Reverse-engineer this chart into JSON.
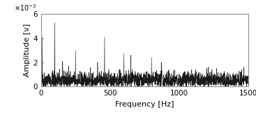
{
  "title": "",
  "xlabel": "Frequency [Hz]",
  "ylabel": "Amplitude [v]",
  "xlim": [
    0,
    1500
  ],
  "ylim": [
    0,
    0.006
  ],
  "yticks": [
    0,
    0.002,
    0.004,
    0.006
  ],
  "ytick_labels": [
    "0",
    "2",
    "4",
    "6"
  ],
  "xticks": [
    0,
    500,
    1000,
    1500
  ],
  "line_color": "#1a1a1a",
  "bg_color": "#ffffff",
  "peaks": [
    {
      "freq": 10,
      "amp": 0.0041
    },
    {
      "freq": 100,
      "amp": 0.0053
    },
    {
      "freq": 155,
      "amp": 0.0021
    },
    {
      "freq": 200,
      "amp": 0.0017
    },
    {
      "freq": 250,
      "amp": 0.003
    },
    {
      "freq": 410,
      "amp": 0.002
    },
    {
      "freq": 460,
      "amp": 0.0041
    },
    {
      "freq": 600,
      "amp": 0.0027
    },
    {
      "freq": 650,
      "amp": 0.0026
    },
    {
      "freq": 800,
      "amp": 0.0024
    },
    {
      "freq": 870,
      "amp": 0.002
    },
    {
      "freq": 1200,
      "amp": 0.0015
    },
    {
      "freq": 1270,
      "amp": 0.0015
    }
  ],
  "noise_base": 0.0005,
  "noise_std": 0.00035,
  "fs": 3000,
  "n_points": 4000
}
